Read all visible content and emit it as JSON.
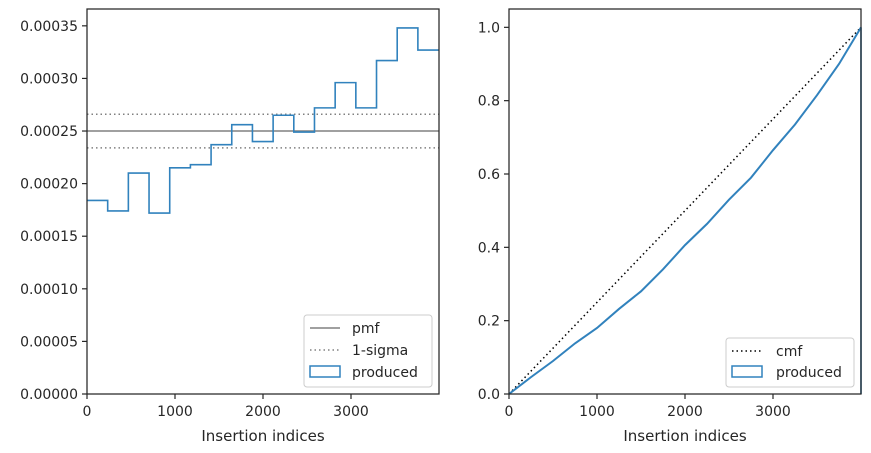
{
  "colors": {
    "produced": "#3182bd",
    "pmf": "#808080",
    "sigma": "#808080",
    "cmf": "#000000",
    "axes": "#262626"
  },
  "chart_data": [
    {
      "type": "histogram-step",
      "xlabel": "Insertion indices",
      "ylabel": "",
      "xlim": [
        0,
        4000
      ],
      "ylim": [
        0,
        0.000366
      ],
      "xticks": [
        0,
        1000,
        2000,
        3000
      ],
      "xtick_labels": [
        "0",
        "1000",
        "2000",
        "3000"
      ],
      "yticks": [
        0,
        5e-05,
        0.0001,
        0.00015,
        0.0002,
        0.00025,
        0.0003,
        0.00035
      ],
      "ytick_labels": [
        "0.00000",
        "0.00005",
        "0.00010",
        "0.00015",
        "0.00020",
        "0.00025",
        "0.00030",
        "0.00035"
      ],
      "bin_edges": [
        0,
        235,
        470,
        705,
        940,
        1175,
        1410,
        1645,
        1880,
        2115,
        2350,
        2585,
        2820,
        3055,
        3290,
        3525,
        3760,
        4000
      ],
      "series": [
        {
          "name": "produced",
          "values": [
            0.000184,
            0.000174,
            0.00021,
            0.000172,
            0.000215,
            0.000218,
            0.000237,
            0.000256,
            0.00024,
            0.000265,
            0.000249,
            0.000272,
            0.000296,
            0.000272,
            0.000317,
            0.000348,
            0.000327
          ]
        }
      ],
      "reference_lines": [
        {
          "name": "pmf",
          "y": 0.00025,
          "style": "solid"
        },
        {
          "name": "1-sigma",
          "y": 0.000266,
          "style": "dotted"
        },
        {
          "name": "1-sigma",
          "y": 0.000234,
          "style": "dotted"
        }
      ],
      "legend": {
        "placement": "lower-right",
        "entries": [
          "pmf",
          "1-sigma",
          "produced"
        ]
      }
    },
    {
      "type": "line",
      "xlabel": "Insertion indices",
      "ylabel": "",
      "xlim": [
        0,
        4000
      ],
      "ylim": [
        0,
        1.05
      ],
      "xticks": [
        0,
        1000,
        2000,
        3000
      ],
      "xtick_labels": [
        "0",
        "1000",
        "2000",
        "3000"
      ],
      "yticks": [
        0,
        0.2,
        0.4,
        0.6,
        0.8,
        1.0
      ],
      "ytick_labels": [
        "0.0",
        "0.2",
        "0.4",
        "0.6",
        "0.8",
        "1.0"
      ],
      "series": [
        {
          "name": "cmf",
          "style": "dotted",
          "x": [
            0,
            4000
          ],
          "y": [
            0,
            1.0
          ]
        },
        {
          "name": "produced",
          "style": "step",
          "x": [
            0,
            250,
            500,
            750,
            1000,
            1250,
            1500,
            1750,
            2000,
            2250,
            2500,
            2750,
            3000,
            3250,
            3500,
            3750,
            4000
          ],
          "y": [
            0,
            0.046,
            0.09,
            0.138,
            0.18,
            0.232,
            0.28,
            0.34,
            0.406,
            0.464,
            0.53,
            0.59,
            0.665,
            0.735,
            0.815,
            0.9,
            1.0
          ]
        }
      ],
      "legend": {
        "placement": "lower-right",
        "entries": [
          "cmf",
          "produced"
        ]
      }
    }
  ]
}
